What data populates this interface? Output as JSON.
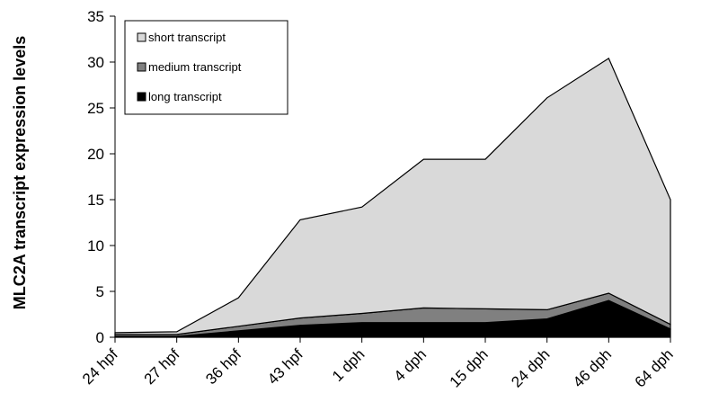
{
  "chart_data": {
    "type": "area",
    "stacked": true,
    "ylabel": "MLC2A transcript expression levels",
    "ylim": [
      0,
      35
    ],
    "yticks": [
      0,
      5,
      10,
      15,
      20,
      25,
      30,
      35
    ],
    "categories": [
      "24 hpf",
      "27 hpf",
      "36 hpf",
      "43 hpf",
      "1 dph",
      "4 dph",
      "15 dph",
      "24 dph",
      "46 dph",
      "64 dph"
    ],
    "series": [
      {
        "name": "long transcript",
        "color": "#000000",
        "values": [
          0.1,
          0.1,
          0.7,
          1.3,
          1.6,
          1.6,
          1.6,
          2.0,
          4.0,
          0.9
        ]
      },
      {
        "name": "medium transcript",
        "color": "#808080",
        "values": [
          0.2,
          0.2,
          0.5,
          0.8,
          1.0,
          1.6,
          1.5,
          1.0,
          0.8,
          0.5
        ]
      },
      {
        "name": "short transcript",
        "color": "#d9d9d9",
        "values": [
          0.2,
          0.3,
          3.1,
          10.7,
          11.6,
          16.2,
          16.3,
          23.1,
          25.6,
          13.6
        ]
      }
    ],
    "legend_position": "top-left",
    "grid": false
  }
}
